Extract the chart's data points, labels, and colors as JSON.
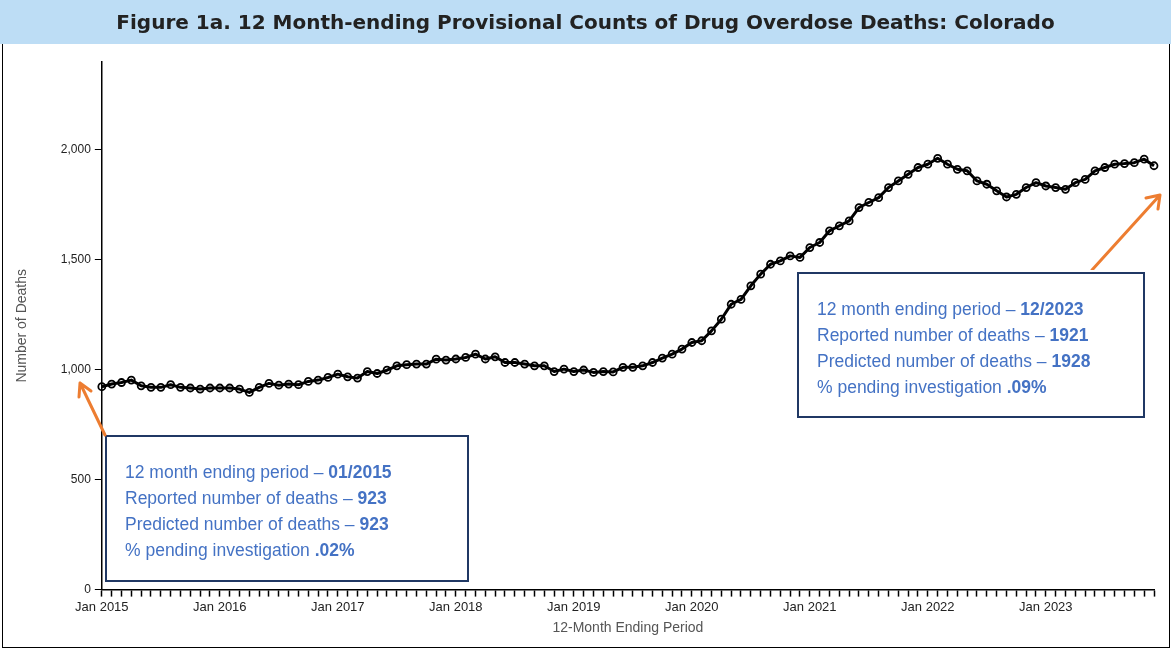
{
  "chart_data": {
    "type": "line",
    "title": "Figure 1a. 12 Month-ending Provisional Counts of Drug Overdose Deaths: Colorado",
    "xlabel": "12-Month Ending Period",
    "ylabel": "Number of Deaths",
    "categories": [
      "Jan 2015",
      null,
      null,
      null,
      null,
      null,
      null,
      null,
      null,
      null,
      null,
      null,
      "Jan 2016",
      null,
      null,
      null,
      null,
      null,
      null,
      null,
      null,
      null,
      null,
      null,
      "Jan 2017",
      null,
      null,
      null,
      null,
      null,
      null,
      null,
      null,
      null,
      null,
      null,
      "Jan 2018",
      null,
      null,
      null,
      null,
      null,
      null,
      null,
      null,
      null,
      null,
      null,
      "Jan 2019",
      null,
      null,
      null,
      null,
      null,
      null,
      null,
      null,
      null,
      null,
      null,
      "Jan 2020",
      null,
      null,
      null,
      null,
      null,
      null,
      null,
      null,
      null,
      null,
      null,
      "Jan 2021",
      null,
      null,
      null,
      null,
      null,
      null,
      null,
      null,
      null,
      null,
      null,
      "Jan 2022",
      null,
      null,
      null,
      null,
      null,
      null,
      null,
      null,
      null,
      null,
      null,
      "Jan 2023",
      null,
      null,
      null,
      null,
      null,
      null,
      null,
      null,
      null,
      null,
      null
    ],
    "values": [
      923,
      935,
      942,
      953,
      927,
      920,
      920,
      932,
      920,
      917,
      912,
      917,
      917,
      917,
      912,
      897,
      920,
      938,
      930,
      935,
      932,
      947,
      953,
      965,
      980,
      968,
      962,
      992,
      983,
      998,
      1018,
      1023,
      1026,
      1026,
      1048,
      1044,
      1049,
      1056,
      1071,
      1049,
      1059,
      1033,
      1033,
      1026,
      1018,
      1018,
      992,
      1003,
      992,
      999,
      988,
      992,
      990,
      1011,
      1011,
      1018,
      1033,
      1053,
      1071,
      1094,
      1124,
      1132,
      1177,
      1230,
      1298,
      1320,
      1382,
      1435,
      1480,
      1495,
      1518,
      1511,
      1556,
      1579,
      1632,
      1655,
      1677,
      1738,
      1761,
      1783,
      1829,
      1859,
      1889,
      1920,
      1935,
      1962,
      1935,
      1912,
      1905,
      1859,
      1844,
      1814,
      1786,
      1798,
      1829,
      1851,
      1836,
      1829,
      1821,
      1851,
      1866,
      1905,
      1920,
      1935,
      1938,
      1942,
      1958,
      1928
    ],
    "color": "#000000",
    "marker": "circle",
    "ylim": [
      0,
      2400
    ],
    "yticks": [
      {
        "value": 0,
        "label": "0"
      },
      {
        "value": 500,
        "label": "500"
      },
      {
        "value": 1000,
        "label": "1,000"
      },
      {
        "value": 1500,
        "label": "1,500"
      },
      {
        "value": 2000,
        "label": "2,000"
      }
    ],
    "annotations": [
      "12 month ending period – 01/2015\nReported number of deaths – 923\nPredicted number of deaths – 923\n% pending investigation .02%",
      "12 month ending period – 12/2023\nReported number of deaths – 1921\nPredicted number of deaths – 1928\n% pending investigation .09%"
    ]
  }
}
